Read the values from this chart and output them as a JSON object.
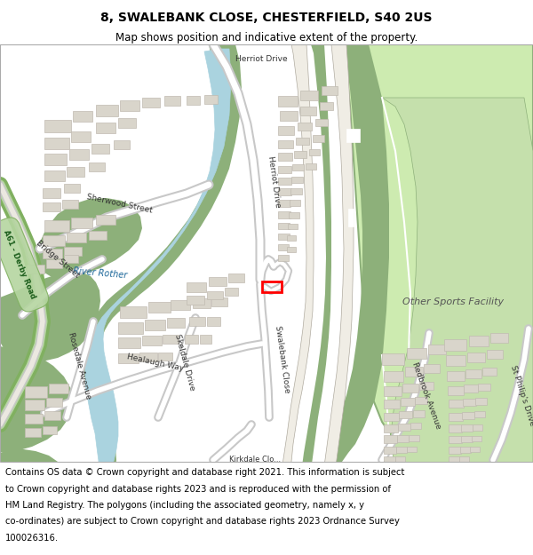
{
  "title": "8, SWALEBANK CLOSE, CHESTERFIELD, S40 2US",
  "subtitle": "Map shows position and indicative extent of the property.",
  "footer_lines": [
    "Contains OS data © Crown copyright and database right 2021. This information is subject",
    "to Crown copyright and database rights 2023 and is reproduced with the permission of",
    "HM Land Registry. The polygons (including the associated geometry, namely x, y",
    "co-ordinates) are subject to Crown copyright and database rights 2023 Ordnance Survey",
    "100026316."
  ],
  "map_bg": "#f2efe9",
  "white": "#ffffff",
  "road_fill": "#ffffff",
  "road_outline": "#c8c8c8",
  "water_color": "#aad3df",
  "green_dark": "#8db07a",
  "green_light": "#cdebb0",
  "building_color": "#d9d5cb",
  "building_outline": "#c0bbb1",
  "highlight_color": "#ff0000",
  "a_road_green": "#b5d5a0",
  "a_road_border": "#80b060",
  "title_fontsize": 10,
  "subtitle_fontsize": 8.5,
  "footer_fontsize": 7.2,
  "label_fontsize": 6.5,
  "label_color": "#333333"
}
